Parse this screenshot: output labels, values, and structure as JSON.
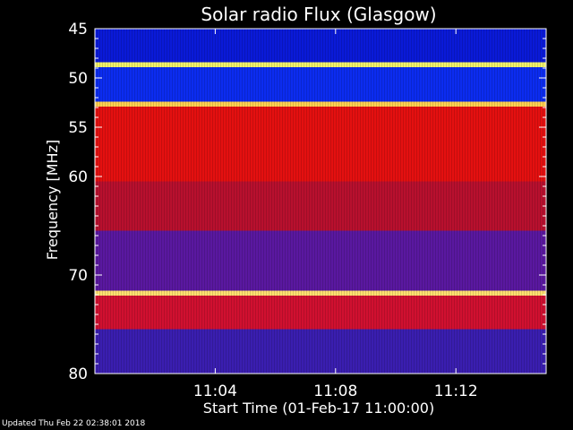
{
  "chart_data": {
    "type": "heatmap",
    "title": "Solar radio Flux (Glasgow)",
    "xlabel": "Start Time (01-Feb-17 11:00:00)",
    "ylabel": "Frequency [MHz]",
    "x_unit": "minutes after start",
    "xlim": [
      0,
      15
    ],
    "ylim": [
      45,
      80
    ],
    "y_inverted": true,
    "x_ticks": [
      {
        "value": 4,
        "label": "11:04"
      },
      {
        "value": 8,
        "label": "11:08"
      },
      {
        "value": 12,
        "label": "11:12"
      }
    ],
    "y_ticks": [
      {
        "value": 45,
        "label": "45"
      },
      {
        "value": 50,
        "label": "50"
      },
      {
        "value": 55,
        "label": "55"
      },
      {
        "value": 60,
        "label": "60"
      },
      {
        "value": 70,
        "label": "70"
      },
      {
        "value": 80,
        "label": "80"
      }
    ],
    "bands": [
      {
        "from": 45.0,
        "to": 48.4,
        "color": "#0a1ad8"
      },
      {
        "from": 48.4,
        "to": 48.9,
        "color": "#f2f26a"
      },
      {
        "from": 48.9,
        "to": 52.4,
        "color": "#0c2cf0"
      },
      {
        "from": 52.4,
        "to": 52.9,
        "color": "#ffd050"
      },
      {
        "from": 52.9,
        "to": 60.5,
        "color": "#e41010"
      },
      {
        "from": 60.5,
        "to": 65.5,
        "color": "#b8102e"
      },
      {
        "from": 65.5,
        "to": 71.6,
        "color": "#5a18a0"
      },
      {
        "from": 71.6,
        "to": 72.1,
        "color": "#ffe070"
      },
      {
        "from": 72.1,
        "to": 75.5,
        "color": "#d01030"
      },
      {
        "from": 75.5,
        "to": 80.0,
        "color": "#3a1eb0"
      }
    ]
  },
  "footer": {
    "updated": "Updated Thu Feb 22 02:38:01 2018"
  }
}
